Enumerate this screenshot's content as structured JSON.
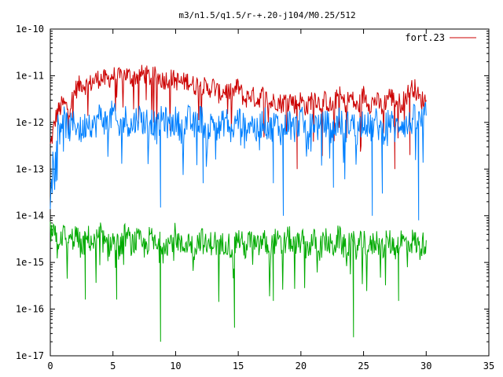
{
  "chart_data": {
    "type": "line",
    "title": "m3/n1.5/q1.5/r-+.20-j104/M0.25/512",
    "xlabel": "",
    "ylabel": "",
    "xlim": [
      0,
      35
    ],
    "ylim": [
      1e-17,
      1e-10
    ],
    "yscale": "log",
    "x_ticks": [
      0,
      5,
      10,
      15,
      20,
      25,
      30,
      35
    ],
    "y_ticks": [
      1e-17,
      1e-16,
      1e-15,
      1e-14,
      1e-13,
      1e-12,
      1e-11,
      1e-10
    ],
    "x_tick_labels": [
      "0",
      "5",
      "10",
      "15",
      "20",
      "25",
      "30",
      "35"
    ],
    "y_tick_labels": [
      "1e-17",
      "1e-16",
      "1e-15",
      "1e-14",
      "1e-13",
      "1e-12",
      "1e-11",
      "1e-10"
    ],
    "grid": false,
    "legend_position": "top-right",
    "series": [
      {
        "name": "fort.23",
        "color": "#cc0000",
        "x": [
          0,
          0.5,
          1,
          1.5,
          2,
          2.5,
          3,
          3.5,
          4,
          4.5,
          5,
          5.5,
          6,
          6.5,
          7,
          7.5,
          8,
          8.5,
          9,
          9.5,
          10,
          10.5,
          11,
          11.5,
          12,
          12.5,
          13,
          13.5,
          14,
          14.5,
          15,
          15.5,
          16,
          16.5,
          17,
          17.5,
          18,
          18.5,
          19,
          19.5,
          20,
          20.5,
          21,
          21.5,
          22,
          22.5,
          23,
          23.5,
          24,
          24.5,
          25,
          25.5,
          26,
          26.5,
          27,
          27.5,
          28,
          28.5,
          29,
          29.5,
          30
        ],
        "y": [
          3e-13,
          1.5e-12,
          2.5e-12,
          2e-12,
          5e-12,
          7e-12,
          6e-12,
          8e-12,
          9e-12,
          8e-12,
          1e-11,
          9e-12,
          1.1e-11,
          9e-12,
          1e-11,
          1.1e-11,
          9e-12,
          1e-11,
          8e-12,
          9e-12,
          8e-12,
          7e-12,
          8e-12,
          6e-12,
          7e-12,
          5e-12,
          6e-12,
          4e-12,
          5e-12,
          4e-12,
          6e-12,
          3e-12,
          4e-12,
          3e-12,
          4e-12,
          2.5e-12,
          3e-12,
          2.5e-12,
          3.5e-12,
          2.5e-12,
          3e-12,
          2e-12,
          4e-12,
          2.5e-12,
          3e-12,
          2e-12,
          4e-12,
          2.5e-12,
          3.5e-12,
          2e-12,
          4e-12,
          2.5e-12,
          3e-12,
          2e-12,
          4e-12,
          3e-12,
          2.5e-12,
          4e-12,
          6e-12,
          3e-12,
          3e-12
        ]
      },
      {
        "name": "",
        "color": "#0080ff",
        "x": [
          0,
          0.5,
          1,
          1.5,
          2,
          2.5,
          3,
          3.5,
          4,
          4.5,
          5,
          5.5,
          6,
          6.5,
          7,
          7.5,
          8,
          8.5,
          9,
          9.5,
          10,
          10.5,
          11,
          11.5,
          12,
          12.5,
          13,
          13.5,
          14,
          14.5,
          15,
          15.5,
          16,
          16.5,
          17,
          17.5,
          18,
          18.5,
          19,
          19.5,
          20,
          20.5,
          21,
          21.5,
          22,
          22.5,
          23,
          23.5,
          24,
          24.5,
          25,
          25.5,
          26,
          26.5,
          27,
          27.5,
          28,
          28.5,
          29,
          29.5,
          30
        ],
        "y": [
          6e-14,
          8e-13,
          1.2e-12,
          7e-13,
          1e-12,
          6e-13,
          1.2e-12,
          8e-13,
          1.5e-12,
          9e-13,
          1.6e-12,
          7e-13,
          1.2e-12,
          8e-13,
          1.4e-12,
          1e-12,
          1.2e-12,
          7e-13,
          1.3e-12,
          8e-13,
          1.1e-12,
          7e-13,
          1.2e-12,
          8e-13,
          1.3e-12,
          6e-13,
          1.1e-12,
          7e-13,
          1.2e-12,
          6e-13,
          1.3e-12,
          7e-13,
          1.1e-12,
          6e-13,
          1.2e-12,
          7e-13,
          1e-12,
          6e-13,
          1.1e-12,
          7e-13,
          1.2e-12,
          6e-13,
          1.1e-12,
          7e-13,
          1e-12,
          6e-13,
          1.2e-12,
          7e-13,
          1.1e-12,
          6e-13,
          1.3e-12,
          7e-13,
          1e-12,
          6e-13,
          1.2e-12,
          7e-13,
          1.1e-12,
          8e-13,
          1.2e-12,
          1e-12,
          1.4e-12
        ]
      },
      {
        "name": "",
        "color": "#00aa00",
        "x": [
          0,
          0.5,
          1,
          1.5,
          2,
          2.5,
          3,
          3.5,
          4,
          4.5,
          5,
          5.5,
          6,
          6.5,
          7,
          7.5,
          8,
          8.5,
          9,
          9.5,
          10,
          10.5,
          11,
          11.5,
          12,
          12.5,
          13,
          13.5,
          14,
          14.5,
          15,
          15.5,
          16,
          16.5,
          17,
          17.5,
          18,
          18.5,
          19,
          19.5,
          20,
          20.5,
          21,
          21.5,
          22,
          22.5,
          23,
          23.5,
          24,
          24.5,
          25,
          25.5,
          26,
          26.5,
          27,
          27.5,
          28,
          28.5,
          29,
          29.5,
          30
        ],
        "y": [
          5e-15,
          3e-15,
          4e-15,
          2.5e-15,
          4e-15,
          2e-15,
          3.5e-15,
          2.5e-15,
          4e-15,
          2e-15,
          3e-15,
          2e-15,
          4e-15,
          2.5e-15,
          3e-15,
          2e-15,
          3.5e-15,
          2e-15,
          3e-15,
          2.5e-15,
          4e-15,
          2e-15,
          3e-15,
          2e-15,
          3.5e-15,
          2e-15,
          3e-15,
          2e-15,
          3e-15,
          2e-15,
          3.5e-15,
          2e-15,
          3e-15,
          2e-15,
          3e-15,
          2e-15,
          3e-15,
          2e-15,
          3.5e-15,
          2e-15,
          3e-15,
          2e-15,
          3e-15,
          2e-15,
          3e-15,
          2e-15,
          3.5e-15,
          2e-15,
          3e-15,
          2e-15,
          3e-15,
          2e-15,
          3e-15,
          2e-15,
          3e-15,
          2e-15,
          3e-15,
          2.5e-15,
          3e-15,
          2e-15,
          3e-15
        ]
      }
    ],
    "dips": [
      {
        "series": 1,
        "x": 8.8,
        "y": 1.5e-14
      },
      {
        "series": 1,
        "x": 12.2,
        "y": 5e-14
      },
      {
        "series": 1,
        "x": 17.8,
        "y": 5e-14
      },
      {
        "series": 1,
        "x": 18.6,
        "y": 1e-14
      },
      {
        "series": 1,
        "x": 22.6,
        "y": 4e-14
      },
      {
        "series": 1,
        "x": 25.7,
        "y": 1e-14
      },
      {
        "series": 1,
        "x": 26.5,
        "y": 3e-14
      },
      {
        "series": 1,
        "x": 29.4,
        "y": 8e-15
      },
      {
        "series": 0,
        "x": 19.7,
        "y": 1e-13
      },
      {
        "series": 0,
        "x": 27.5,
        "y": 1e-13
      },
      {
        "series": 0,
        "x": 28.7,
        "y": 2e-13
      },
      {
        "series": 2,
        "x": 2.8,
        "y": 1.6e-16
      },
      {
        "series": 2,
        "x": 5.3,
        "y": 1.6e-16
      },
      {
        "series": 2,
        "x": 8.8,
        "y": 2e-17
      },
      {
        "series": 2,
        "x": 14.7,
        "y": 4e-17
      },
      {
        "series": 2,
        "x": 17.8,
        "y": 1.5e-16
      },
      {
        "series": 2,
        "x": 24.2,
        "y": 2.5e-17
      },
      {
        "series": 2,
        "x": 27.8,
        "y": 1.5e-16
      }
    ]
  }
}
